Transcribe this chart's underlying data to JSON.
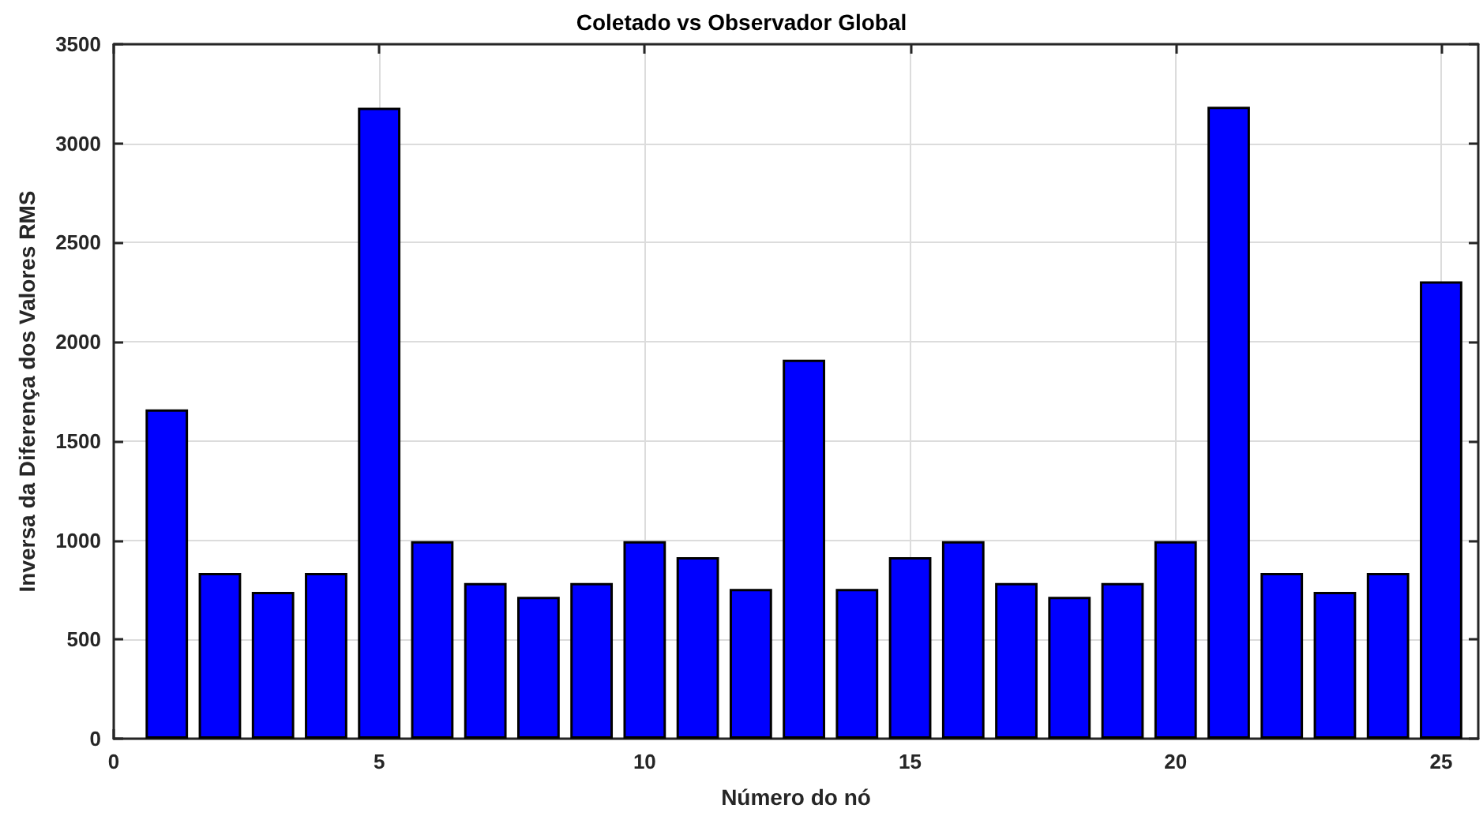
{
  "chart_data": {
    "type": "bar",
    "title": "Coletado vs Observador Global",
    "xlabel": "Número do nó",
    "ylabel": "Inversa da Diferença dos Valores RMS",
    "x": [
      1,
      2,
      3,
      4,
      5,
      6,
      7,
      8,
      9,
      10,
      11,
      12,
      13,
      14,
      15,
      16,
      17,
      18,
      19,
      20,
      21,
      22,
      23,
      24,
      25
    ],
    "values": [
      1660,
      835,
      740,
      835,
      3180,
      995,
      785,
      715,
      785,
      995,
      915,
      755,
      1910,
      755,
      915,
      995,
      785,
      715,
      785,
      995,
      3185,
      835,
      740,
      835,
      2305
    ],
    "color": "#0000ff",
    "xlim": [
      0,
      25.7
    ],
    "xticks": [
      0,
      5,
      10,
      15,
      20,
      25
    ],
    "ylim": [
      0,
      3500
    ],
    "yticks": [
      0,
      500,
      1000,
      1500,
      2000,
      2500,
      3000,
      3500
    ],
    "grid": true
  }
}
